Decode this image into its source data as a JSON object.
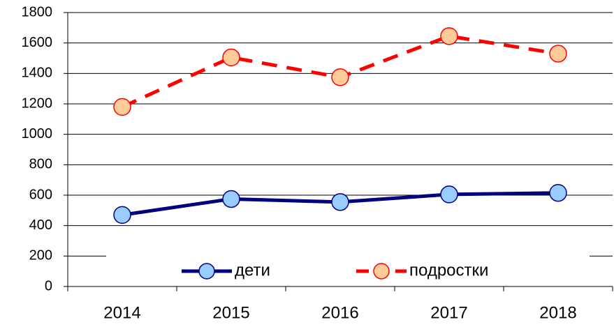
{
  "chart_data": {
    "type": "line",
    "categories": [
      "2014",
      "2015",
      "2016",
      "2017",
      "2018"
    ],
    "series": [
      {
        "name": "дети",
        "color": "#000080",
        "marker_color": "#99ccff",
        "dashed": false,
        "values": [
          470,
          575,
          555,
          605,
          615
        ]
      },
      {
        "name": "подростки",
        "color": "#ff0000",
        "marker_color": "#ffcc99",
        "dashed": true,
        "values": [
          1180,
          1505,
          1375,
          1645,
          1530
        ]
      }
    ],
    "ylim": [
      0,
      1800
    ],
    "yticks": [
      0,
      200,
      400,
      600,
      800,
      1000,
      1200,
      1400,
      1600,
      1800
    ],
    "grid": true,
    "legend": "bottom"
  }
}
